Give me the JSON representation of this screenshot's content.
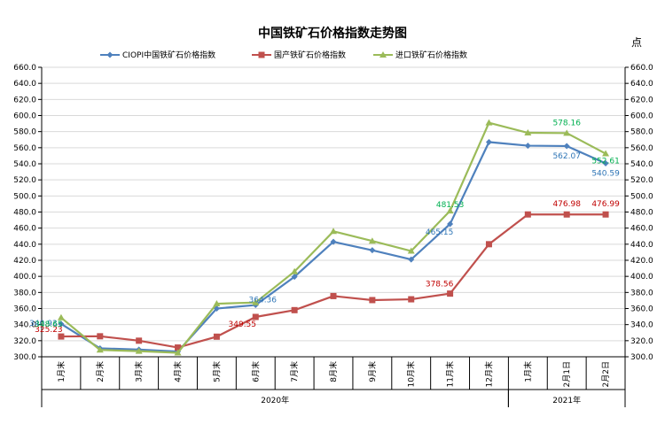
{
  "chart_data": {
    "type": "line",
    "title": "中国铁矿石价格指数走势图",
    "unit_label": "点",
    "ylim": [
      300,
      660
    ],
    "ytick_step": 20,
    "yaxis_both_sides": true,
    "categories": [
      "1月末",
      "2月末",
      "3月末",
      "4月末",
      "5月末",
      "6月末",
      "7月末",
      "8月末",
      "9月末",
      "10月末",
      "11月末",
      "12月末",
      "1月末",
      "2月1日",
      "2月2日"
    ],
    "year_groups": [
      {
        "label": "2020年",
        "start": 0,
        "end": 11
      },
      {
        "label": "2021年",
        "start": 12,
        "end": 14
      }
    ],
    "legend_position": "top",
    "series": [
      {
        "name": "CIOPI中国铁矿石价格指数",
        "color": "#4F81BD",
        "marker": "diamond",
        "values": [
          340.9,
          310.5,
          309.0,
          306.5,
          360.0,
          364.36,
          399.5,
          443.0,
          432.5,
          421.0,
          465.15,
          567.0,
          562.5,
          562.07,
          540.59
        ],
        "labels": [
          {
            "i": 0,
            "text": "340.93"
          },
          {
            "i": 5,
            "text": "364.36"
          },
          {
            "i": 10,
            "text": "465.15"
          },
          {
            "i": 13,
            "text": "562.07"
          },
          {
            "i": 14,
            "text": "540.59"
          }
        ]
      },
      {
        "name": "国产铁矿石价格指数",
        "color": "#C0504D",
        "marker": "square",
        "values": [
          325.23,
          325.5,
          320.0,
          311.5,
          325.0,
          349.55,
          358.0,
          375.5,
          370.5,
          371.5,
          378.56,
          440.0,
          477.0,
          476.98,
          476.99
        ],
        "labels": [
          {
            "i": 0,
            "text": "325.23"
          },
          {
            "i": 5,
            "text": "349.55"
          },
          {
            "i": 10,
            "text": "378.56"
          },
          {
            "i": 13,
            "text": "476.98"
          },
          {
            "i": 14,
            "text": "476.99"
          }
        ]
      },
      {
        "name": "进口铁矿石价格指数",
        "color": "#9BBB59",
        "marker": "triangle",
        "values": [
          348.65,
          308.5,
          307.0,
          305.0,
          366.0,
          367.5,
          406.0,
          456.0,
          444.0,
          431.5,
          481.53,
          591.0,
          578.5,
          578.16,
          552.61
        ],
        "labels": [
          {
            "i": 0,
            "text": "348.65"
          },
          {
            "i": 10,
            "text": "481.53"
          },
          {
            "i": 13,
            "text": "578.16"
          },
          {
            "i": 14,
            "text": "552.61"
          }
        ]
      }
    ]
  }
}
